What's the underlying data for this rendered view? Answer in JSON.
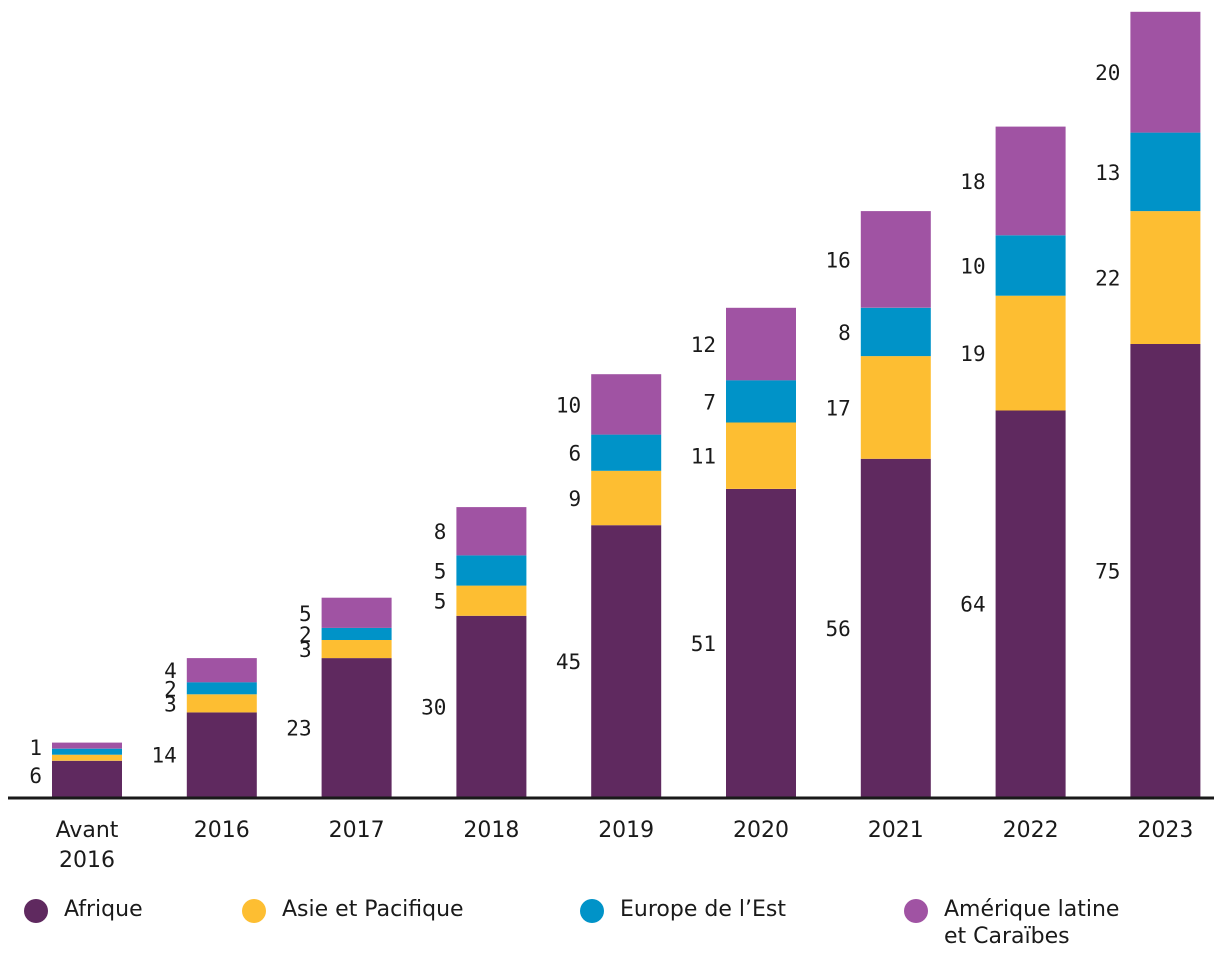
{
  "chart_data": {
    "type": "bar",
    "stacked": true,
    "categories": [
      "Avant\n2016",
      "2016",
      "2017",
      "2018",
      "2019",
      "2020",
      "2021",
      "2022",
      "2023"
    ],
    "series": [
      {
        "name": "Afrique",
        "color": "#5f295f",
        "values": [
          6,
          14,
          23,
          30,
          45,
          51,
          56,
          64,
          75
        ]
      },
      {
        "name": "Asie et Pacifique",
        "color": "#fdbe32",
        "values": [
          1,
          3,
          3,
          5,
          9,
          11,
          17,
          19,
          22
        ]
      },
      {
        "name": "Europe de l’Est",
        "color": "#0093c8",
        "values": [
          1,
          2,
          2,
          5,
          6,
          7,
          8,
          10,
          13
        ]
      },
      {
        "name": "Amérique latine\net Caraïbes",
        "color": "#a053a3",
        "values": [
          1,
          4,
          5,
          8,
          10,
          12,
          16,
          18,
          20
        ]
      }
    ],
    "data_labels": [
      [
        "6",
        "1"
      ],
      [
        "14",
        "3",
        "2",
        "4"
      ],
      [
        "23",
        "3",
        "2",
        "5"
      ],
      [
        "30",
        "5",
        "5",
        "8"
      ],
      [
        "45",
        "9",
        "6",
        "10"
      ],
      [
        "51",
        "11",
        "7",
        "12"
      ],
      [
        "56",
        "17",
        "8",
        "16"
      ],
      [
        "64",
        "19",
        "10",
        "18"
      ],
      [
        "75",
        "22",
        "13",
        "20"
      ]
    ],
    "title": "",
    "xlabel": "",
    "ylabel": "",
    "ylim": [
      0,
      130
    ],
    "grid": false,
    "legend_position": "bottom"
  }
}
